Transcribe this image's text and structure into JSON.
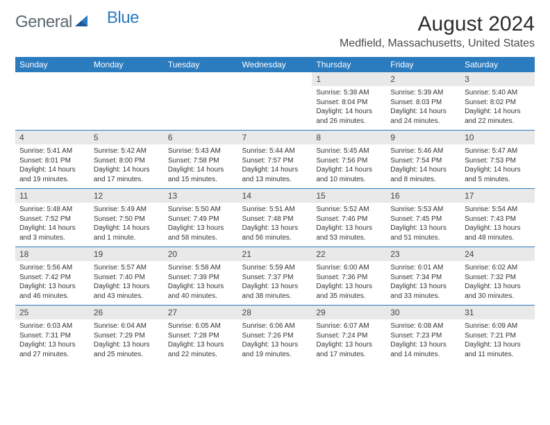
{
  "brand": {
    "part1": "General",
    "part2": "Blue"
  },
  "title": "August 2024",
  "location": "Medfield, Massachusetts, United States",
  "colors": {
    "header_bg": "#2b7bbf",
    "header_text": "#ffffff",
    "daynum_bg": "#e9e9e9",
    "rule": "#2b7bbf",
    "text": "#333333",
    "logo_gray": "#5a6770",
    "logo_blue": "#2b7bbf"
  },
  "weekdays": [
    "Sunday",
    "Monday",
    "Tuesday",
    "Wednesday",
    "Thursday",
    "Friday",
    "Saturday"
  ],
  "weeks": [
    [
      null,
      null,
      null,
      null,
      {
        "n": "1",
        "sr": "5:38 AM",
        "ss": "8:04 PM",
        "dl": "14 hours and 26 minutes."
      },
      {
        "n": "2",
        "sr": "5:39 AM",
        "ss": "8:03 PM",
        "dl": "14 hours and 24 minutes."
      },
      {
        "n": "3",
        "sr": "5:40 AM",
        "ss": "8:02 PM",
        "dl": "14 hours and 22 minutes."
      }
    ],
    [
      {
        "n": "4",
        "sr": "5:41 AM",
        "ss": "8:01 PM",
        "dl": "14 hours and 19 minutes."
      },
      {
        "n": "5",
        "sr": "5:42 AM",
        "ss": "8:00 PM",
        "dl": "14 hours and 17 minutes."
      },
      {
        "n": "6",
        "sr": "5:43 AM",
        "ss": "7:58 PM",
        "dl": "14 hours and 15 minutes."
      },
      {
        "n": "7",
        "sr": "5:44 AM",
        "ss": "7:57 PM",
        "dl": "14 hours and 13 minutes."
      },
      {
        "n": "8",
        "sr": "5:45 AM",
        "ss": "7:56 PM",
        "dl": "14 hours and 10 minutes."
      },
      {
        "n": "9",
        "sr": "5:46 AM",
        "ss": "7:54 PM",
        "dl": "14 hours and 8 minutes."
      },
      {
        "n": "10",
        "sr": "5:47 AM",
        "ss": "7:53 PM",
        "dl": "14 hours and 5 minutes."
      }
    ],
    [
      {
        "n": "11",
        "sr": "5:48 AM",
        "ss": "7:52 PM",
        "dl": "14 hours and 3 minutes."
      },
      {
        "n": "12",
        "sr": "5:49 AM",
        "ss": "7:50 PM",
        "dl": "14 hours and 1 minute."
      },
      {
        "n": "13",
        "sr": "5:50 AM",
        "ss": "7:49 PM",
        "dl": "13 hours and 58 minutes."
      },
      {
        "n": "14",
        "sr": "5:51 AM",
        "ss": "7:48 PM",
        "dl": "13 hours and 56 minutes."
      },
      {
        "n": "15",
        "sr": "5:52 AM",
        "ss": "7:46 PM",
        "dl": "13 hours and 53 minutes."
      },
      {
        "n": "16",
        "sr": "5:53 AM",
        "ss": "7:45 PM",
        "dl": "13 hours and 51 minutes."
      },
      {
        "n": "17",
        "sr": "5:54 AM",
        "ss": "7:43 PM",
        "dl": "13 hours and 48 minutes."
      }
    ],
    [
      {
        "n": "18",
        "sr": "5:56 AM",
        "ss": "7:42 PM",
        "dl": "13 hours and 46 minutes."
      },
      {
        "n": "19",
        "sr": "5:57 AM",
        "ss": "7:40 PM",
        "dl": "13 hours and 43 minutes."
      },
      {
        "n": "20",
        "sr": "5:58 AM",
        "ss": "7:39 PM",
        "dl": "13 hours and 40 minutes."
      },
      {
        "n": "21",
        "sr": "5:59 AM",
        "ss": "7:37 PM",
        "dl": "13 hours and 38 minutes."
      },
      {
        "n": "22",
        "sr": "6:00 AM",
        "ss": "7:36 PM",
        "dl": "13 hours and 35 minutes."
      },
      {
        "n": "23",
        "sr": "6:01 AM",
        "ss": "7:34 PM",
        "dl": "13 hours and 33 minutes."
      },
      {
        "n": "24",
        "sr": "6:02 AM",
        "ss": "7:32 PM",
        "dl": "13 hours and 30 minutes."
      }
    ],
    [
      {
        "n": "25",
        "sr": "6:03 AM",
        "ss": "7:31 PM",
        "dl": "13 hours and 27 minutes."
      },
      {
        "n": "26",
        "sr": "6:04 AM",
        "ss": "7:29 PM",
        "dl": "13 hours and 25 minutes."
      },
      {
        "n": "27",
        "sr": "6:05 AM",
        "ss": "7:28 PM",
        "dl": "13 hours and 22 minutes."
      },
      {
        "n": "28",
        "sr": "6:06 AM",
        "ss": "7:26 PM",
        "dl": "13 hours and 19 minutes."
      },
      {
        "n": "29",
        "sr": "6:07 AM",
        "ss": "7:24 PM",
        "dl": "13 hours and 17 minutes."
      },
      {
        "n": "30",
        "sr": "6:08 AM",
        "ss": "7:23 PM",
        "dl": "13 hours and 14 minutes."
      },
      {
        "n": "31",
        "sr": "6:09 AM",
        "ss": "7:21 PM",
        "dl": "13 hours and 11 minutes."
      }
    ]
  ],
  "labels": {
    "sunrise": "Sunrise:",
    "sunset": "Sunset:",
    "daylight": "Daylight:"
  }
}
